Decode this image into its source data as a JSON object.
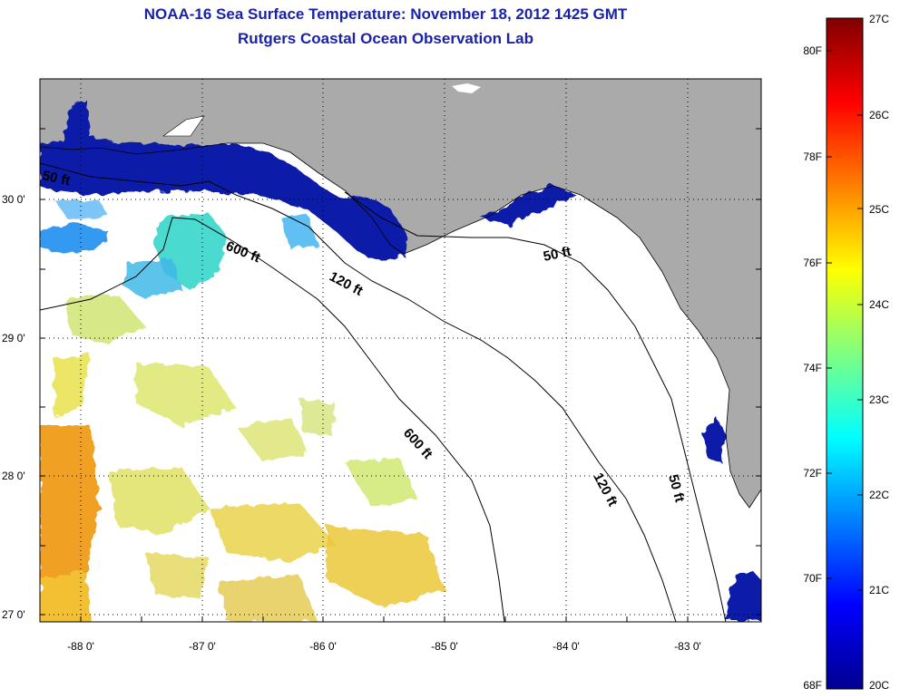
{
  "header": {
    "title": "NOAA-16 Sea Surface Temperature:  November 18, 2012 1425 GMT",
    "subtitle": "Rutgers Coastal Ocean Observation Lab"
  },
  "map": {
    "lat_labels": [
      "30 0'",
      "29 0'",
      "28 0'",
      "27 0'"
    ],
    "lon_labels": [
      "-88 0'",
      "-87 0'",
      "-86 0'",
      "-85 0'",
      "-84 0'",
      "-83 0'"
    ],
    "contours": {
      "label_50_ft": "50 ft",
      "label_120_ft": "120 ft",
      "label_600_ft": "600 ft"
    },
    "colors": {
      "land": "#aaaaaa",
      "ocean_missing": "#ffffff"
    }
  },
  "colorbar": {
    "celsius": [
      "27C",
      "26C",
      "25C",
      "24C",
      "23C",
      "22C",
      "21C",
      "20C"
    ],
    "fahrenheit": [
      "80F",
      "78F",
      "76F",
      "74F",
      "72F",
      "70F",
      "68F"
    ]
  }
}
